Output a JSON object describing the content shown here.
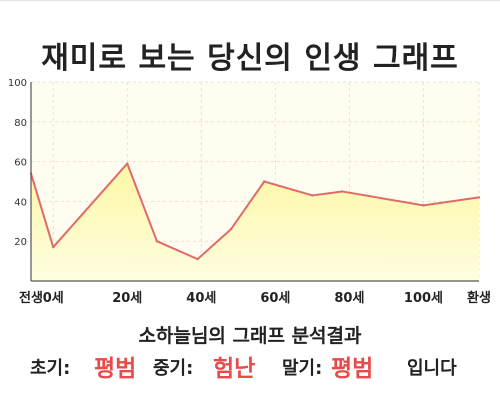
{
  "title": "재미로 보는 당신의 인생 그래프",
  "chart_data": {
    "type": "area",
    "x_labels": [
      "전생",
      "0세",
      "20세",
      "40세",
      "60세",
      "80세",
      "100세",
      "환생"
    ],
    "y_ticks": [
      20,
      40,
      60,
      80,
      100
    ],
    "ylim": [
      0,
      100
    ],
    "points": [
      {
        "x": -6,
        "y": 54
      },
      {
        "x": 0,
        "y": 17
      },
      {
        "x": 20,
        "y": 59
      },
      {
        "x": 28,
        "y": 20
      },
      {
        "x": 39,
        "y": 11
      },
      {
        "x": 48,
        "y": 26
      },
      {
        "x": 57,
        "y": 50
      },
      {
        "x": 70,
        "y": 43
      },
      {
        "x": 78,
        "y": 45
      },
      {
        "x": 100,
        "y": 38
      },
      {
        "x": 115,
        "y": 42
      }
    ],
    "grid": true,
    "colors": {
      "line": "#e06a6a",
      "fill_top": "#fdf7a4",
      "fill_bottom": "#fffde0",
      "plot_bg": "#fffdf0",
      "grid": "#e8e4c8"
    }
  },
  "summary": {
    "title": "소하늘님의 그래프 분석결과",
    "early_label": "초기:",
    "early_value": "평범",
    "mid_label": "중기:",
    "mid_value": "험난",
    "late_label": "말기:",
    "late_value": "평범",
    "suffix": "입니다"
  }
}
